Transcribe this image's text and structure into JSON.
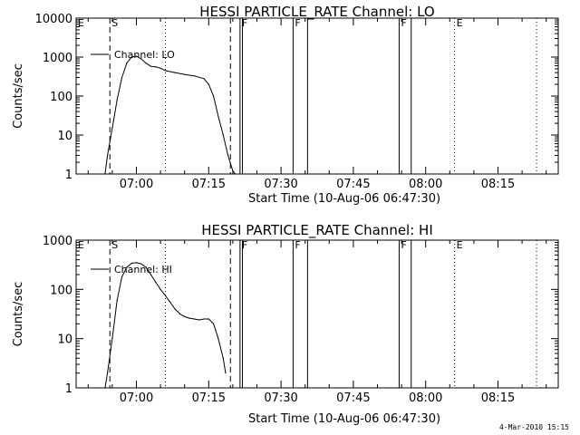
{
  "footer": {
    "timestamp": "4-Mar-2010 15:15"
  },
  "colors": {
    "background": "#ffffff",
    "foreground": "#000000"
  },
  "chart_data": [
    {
      "type": "line",
      "title": "HESSI PARTICLE_RATE Channel: LO",
      "xlabel": "Start Time (10-Aug-06 06:47:30)",
      "ylabel": "Counts/sec",
      "yscale": "log",
      "ylim": [
        1,
        10000
      ],
      "y_ticks": [
        1,
        10,
        100,
        1000,
        10000
      ],
      "y_tick_labels": [
        "1",
        "10",
        "100",
        "1000",
        "10000"
      ],
      "xlim": [
        "06:47:30",
        "08:27:30"
      ],
      "x_ticks": [
        "07:00",
        "07:15",
        "07:30",
        "07:45",
        "08:00",
        "08:15"
      ],
      "legend": {
        "placement": "top-left",
        "entries": [
          "Channel: LO"
        ]
      },
      "series": [
        {
          "name": "Channel: LO",
          "x": [
            "06:53:30",
            "06:54:00",
            "06:55:00",
            "06:56:00",
            "06:57:00",
            "06:58:00",
            "06:59:00",
            "07:00:00",
            "07:01:00",
            "07:02:00",
            "07:03:00",
            "07:04:00",
            "07:05:00",
            "07:06:00",
            "07:08:00",
            "07:10:00",
            "07:12:00",
            "07:14:00",
            "07:15:00",
            "07:16:00",
            "07:17:00",
            "07:18:00",
            "07:19:00",
            "07:20:00",
            "07:20:30"
          ],
          "y": [
            1,
            3,
            15,
            80,
            300,
            700,
            1000,
            1050,
            900,
            700,
            580,
            560,
            520,
            450,
            400,
            360,
            330,
            280,
            200,
            100,
            30,
            10,
            3,
            1.2,
            1
          ]
        }
      ],
      "markers": [
        {
          "label": "E",
          "time": "06:47:30",
          "style": "solid"
        },
        {
          "label": "S",
          "time": "06:54:30",
          "style": "dashed"
        },
        {
          "label": "",
          "time": "07:06:00",
          "style": "dotted"
        },
        {
          "label": "",
          "time": "07:19:30",
          "style": "dashed"
        },
        {
          "label": "F",
          "time": "07:21:30",
          "style": "solid"
        },
        {
          "label": "",
          "time": "07:22:00",
          "style": "solid"
        },
        {
          "label": "F",
          "time": "07:32:30",
          "style": "solid"
        },
        {
          "label": "",
          "time": "07:35:30",
          "style": "solid"
        },
        {
          "label": "F",
          "time": "07:54:30",
          "style": "solid"
        },
        {
          "label": "",
          "time": "07:57:00",
          "style": "solid"
        },
        {
          "label": "E",
          "time": "08:06:00",
          "style": "dotted"
        },
        {
          "label": "",
          "time": "08:23:00",
          "style": "dotted"
        }
      ]
    },
    {
      "type": "line",
      "title": "HESSI PARTICLE_RATE Channel: HI",
      "xlabel": "Start Time (10-Aug-06 06:47:30)",
      "ylabel": "Counts/sec",
      "yscale": "log",
      "ylim": [
        1,
        1000
      ],
      "y_ticks": [
        1,
        10,
        100,
        1000
      ],
      "y_tick_labels": [
        "1",
        "10",
        "100",
        "1000"
      ],
      "xlim": [
        "06:47:30",
        "08:27:30"
      ],
      "x_ticks": [
        "07:00",
        "07:15",
        "07:30",
        "07:45",
        "08:00",
        "08:15"
      ],
      "legend": {
        "placement": "top-left",
        "entries": [
          "Channel: HI"
        ]
      },
      "series": [
        {
          "name": "Channel: HI",
          "x": [
            "06:53:30",
            "06:54:00",
            "06:55:00",
            "06:56:00",
            "06:57:00",
            "06:58:00",
            "06:59:00",
            "07:00:00",
            "07:01:00",
            "07:02:00",
            "07:03:00",
            "07:04:00",
            "07:05:00",
            "07:06:00",
            "07:07:00",
            "07:08:00",
            "07:09:00",
            "07:10:00",
            "07:11:00",
            "07:12:00",
            "07:13:00",
            "07:14:00",
            "07:15:00",
            "07:16:00",
            "07:17:00",
            "07:18:00",
            "07:18:30"
          ],
          "y": [
            1,
            2,
            10,
            60,
            180,
            280,
            340,
            350,
            330,
            280,
            200,
            140,
            100,
            75,
            55,
            40,
            32,
            28,
            26,
            25,
            24,
            25,
            25,
            20,
            10,
            4,
            2
          ]
        }
      ],
      "markers": [
        {
          "label": "E",
          "time": "06:47:30",
          "style": "solid"
        },
        {
          "label": "S",
          "time": "06:54:30",
          "style": "dashed"
        },
        {
          "label": "",
          "time": "07:06:00",
          "style": "dotted"
        },
        {
          "label": "",
          "time": "07:19:30",
          "style": "dashed"
        },
        {
          "label": "F",
          "time": "07:21:30",
          "style": "solid"
        },
        {
          "label": "",
          "time": "07:22:00",
          "style": "solid"
        },
        {
          "label": "F",
          "time": "07:32:30",
          "style": "solid"
        },
        {
          "label": "",
          "time": "07:35:30",
          "style": "solid"
        },
        {
          "label": "F",
          "time": "07:54:30",
          "style": "solid"
        },
        {
          "label": "",
          "time": "07:57:00",
          "style": "solid"
        },
        {
          "label": "E",
          "time": "08:06:00",
          "style": "dotted"
        },
        {
          "label": "",
          "time": "08:23:00",
          "style": "dotted"
        }
      ]
    }
  ]
}
